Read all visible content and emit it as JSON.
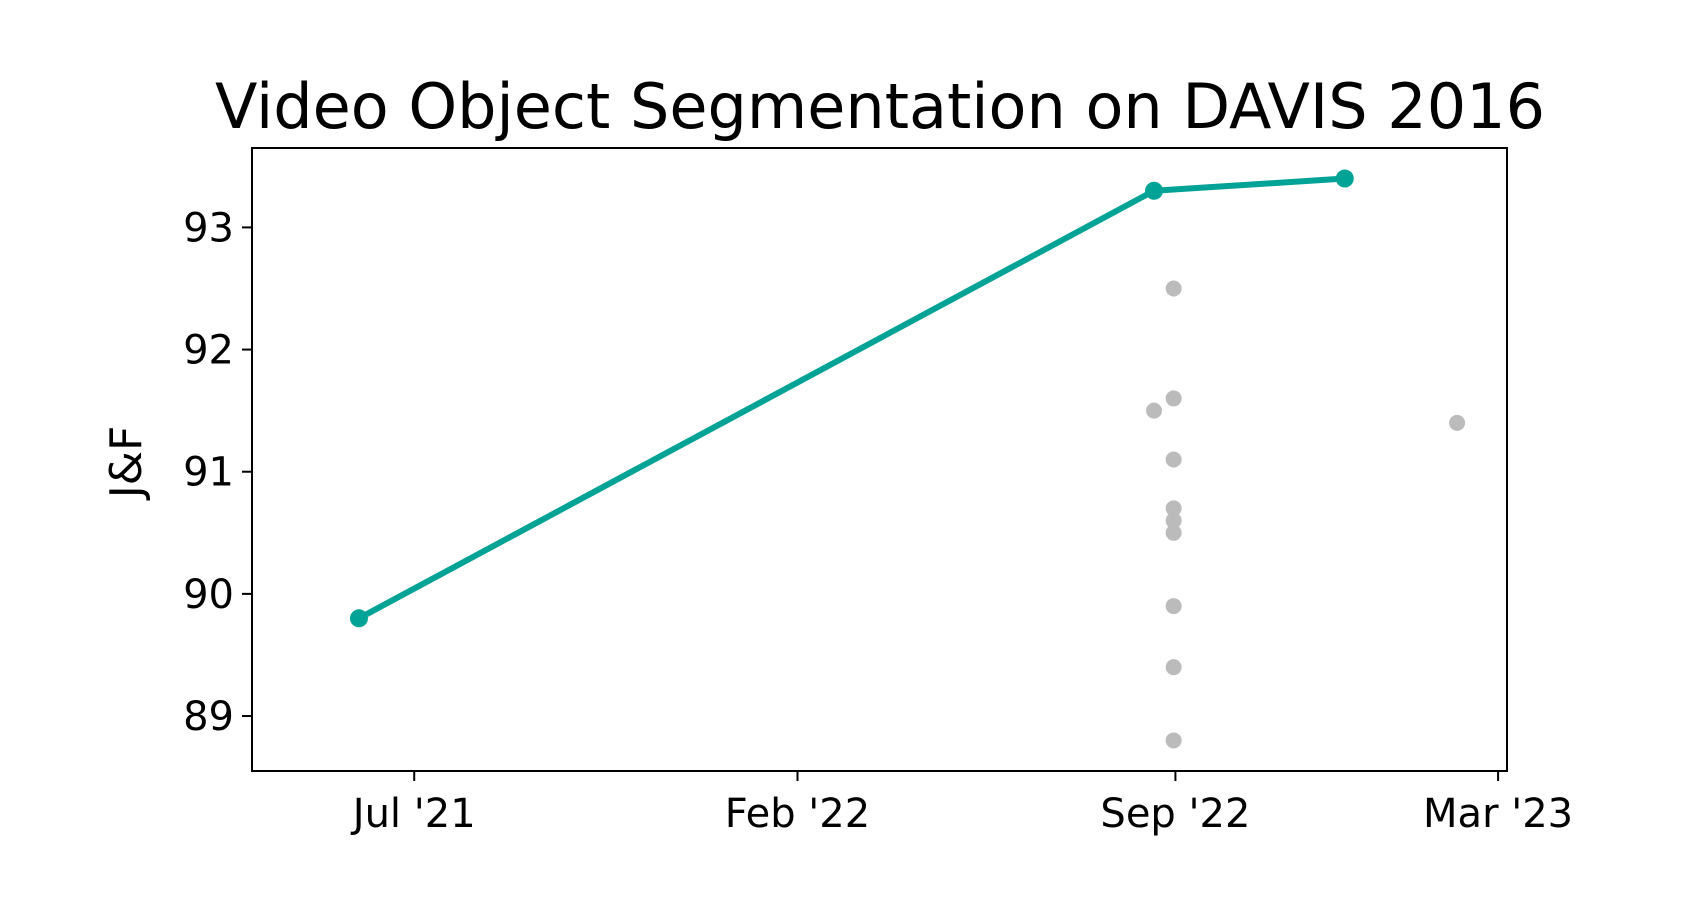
{
  "chart_data": {
    "type": "scatter",
    "title": "Video Object Segmentation on DAVIS 2016",
    "xlabel": "",
    "ylabel": "J&F",
    "x_axis": {
      "type": "date",
      "range": [
        "2021-04-01",
        "2023-03-06"
      ],
      "ticks": [
        {
          "date": "2021-07-01",
          "label": "Jul '21"
        },
        {
          "date": "2022-02-01",
          "label": "Feb '22"
        },
        {
          "date": "2022-09-01",
          "label": "Sep '22"
        },
        {
          "date": "2023-03-01",
          "label": "Mar '23"
        }
      ]
    },
    "y_axis": {
      "range": [
        88.55,
        93.65
      ],
      "ticks": [
        89,
        90,
        91,
        92,
        93
      ]
    },
    "grid": false,
    "series": [
      {
        "kind": "line",
        "color": "#00a395",
        "points": [
          {
            "date": "2021-05-31",
            "value": 89.8
          },
          {
            "date": "2022-08-20",
            "value": 93.3
          },
          {
            "date": "2022-12-05",
            "value": 93.4
          }
        ]
      },
      {
        "kind": "scatter",
        "color": "#bbbbbb",
        "points": [
          {
            "date": "2022-08-20",
            "value": 91.5
          },
          {
            "date": "2022-08-31",
            "value": 92.5
          },
          {
            "date": "2022-08-31",
            "value": 91.6
          },
          {
            "date": "2022-08-31",
            "value": 91.1
          },
          {
            "date": "2022-08-31",
            "value": 90.7
          },
          {
            "date": "2022-08-31",
            "value": 90.6
          },
          {
            "date": "2022-08-31",
            "value": 90.5
          },
          {
            "date": "2022-08-31",
            "value": 89.9
          },
          {
            "date": "2022-08-31",
            "value": 89.4
          },
          {
            "date": "2022-08-31",
            "value": 88.8
          },
          {
            "date": "2023-02-06",
            "value": 91.4
          }
        ]
      }
    ]
  }
}
